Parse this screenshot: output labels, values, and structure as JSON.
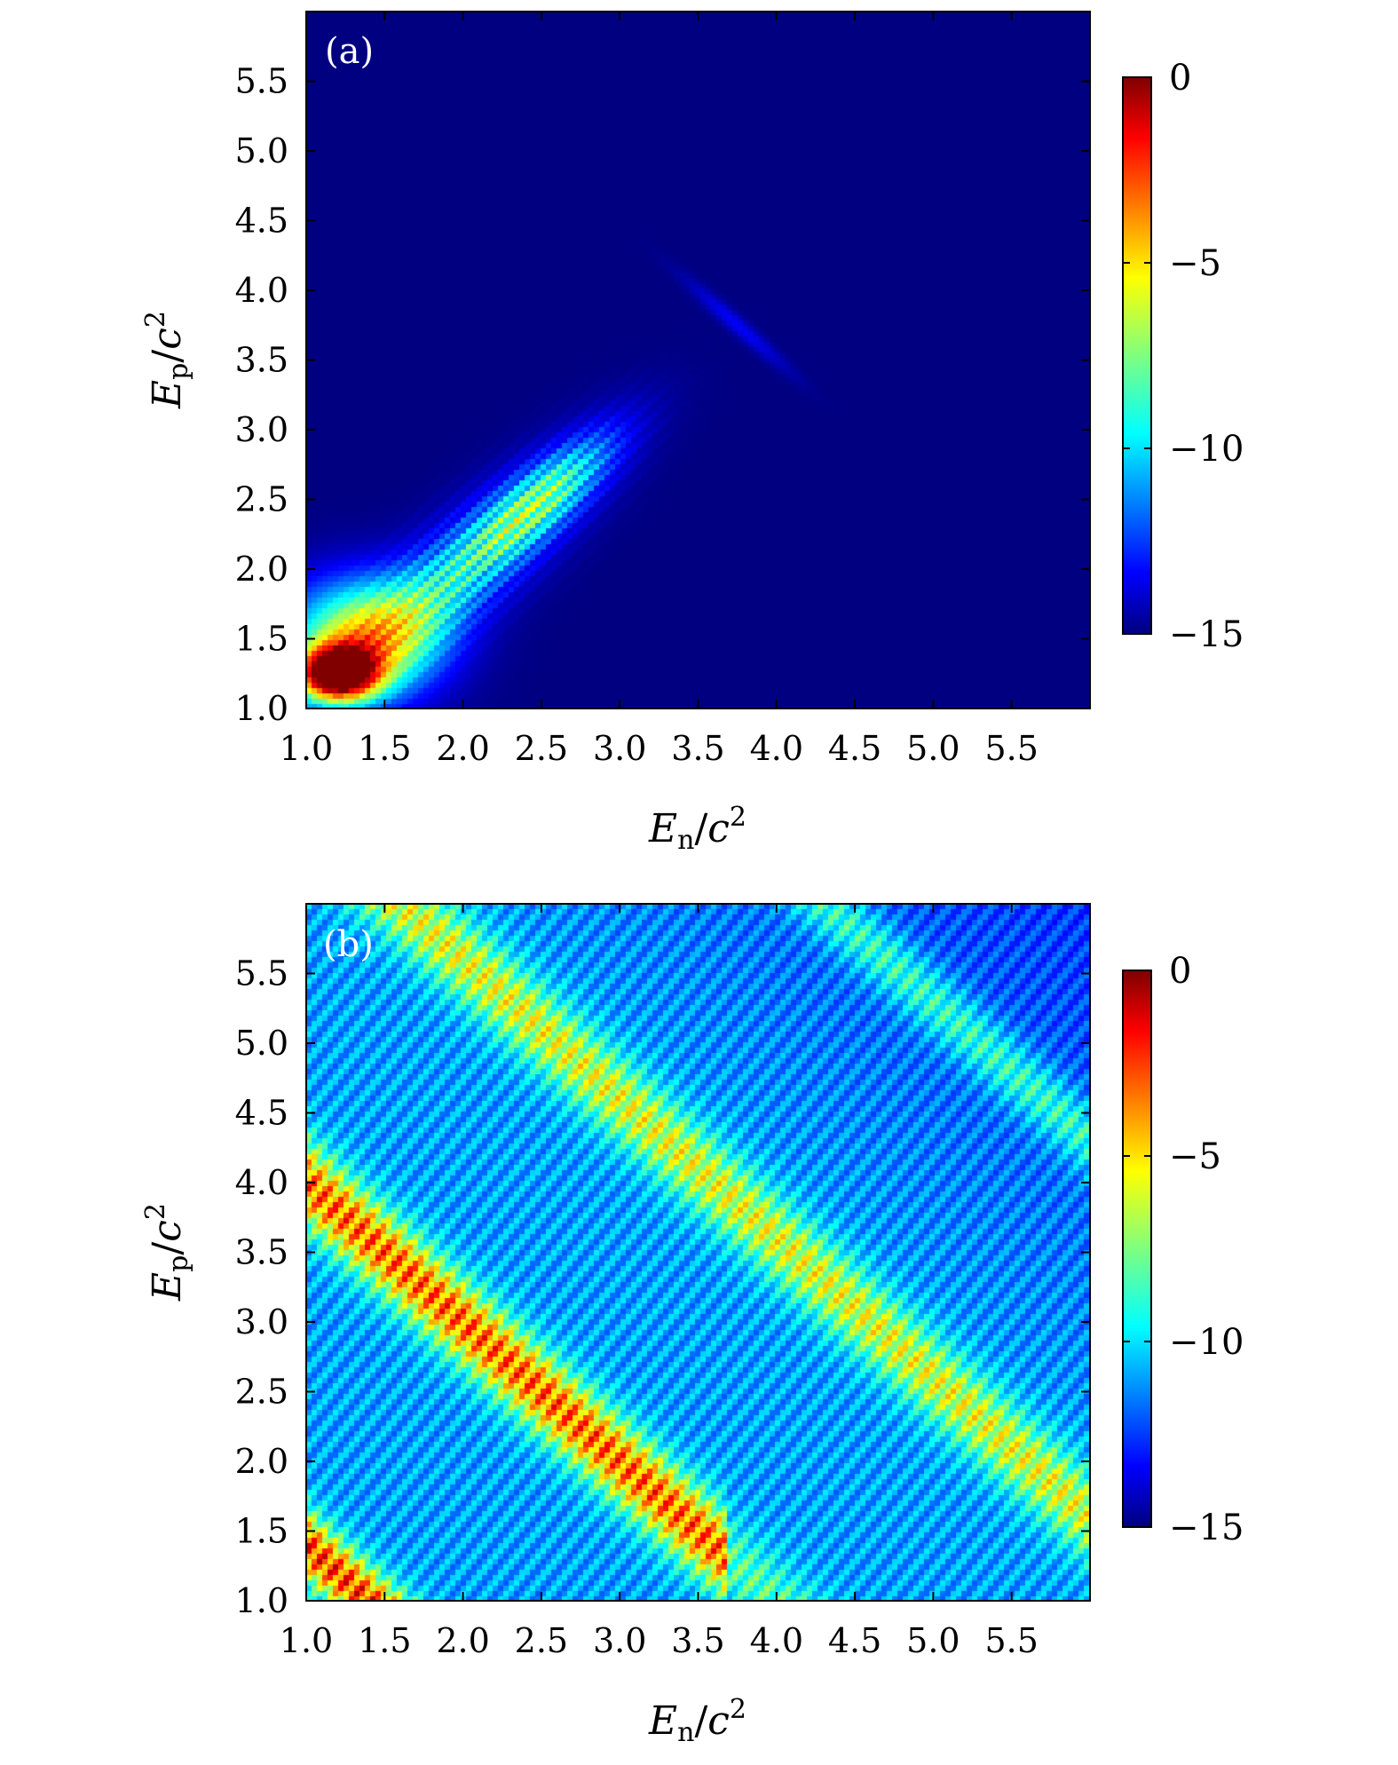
{
  "chart_data": [
    {
      "type": "heatmap",
      "panel_label": "(a)",
      "xlabel": {
        "main": "E",
        "sub": "n",
        "slash": "/",
        "c": "c",
        "sup": "2"
      },
      "ylabel": {
        "main": "E",
        "sub": "p",
        "slash": "/",
        "c": "c",
        "sup": "2"
      },
      "xlim": [
        1.0,
        6.0
      ],
      "ylim": [
        1.0,
        6.0
      ],
      "x_ticks": [
        "1.0",
        "1.5",
        "2.0",
        "2.5",
        "3.0",
        "3.5",
        "4.0",
        "4.5",
        "5.0",
        "5.5"
      ],
      "y_ticks": [
        "1.0",
        "1.5",
        "2.0",
        "2.5",
        "3.0",
        "3.5",
        "4.0",
        "4.5",
        "5.0",
        "5.5"
      ],
      "colorbar": {
        "min": -15,
        "max": 0,
        "ticks": [
          "0",
          "−5",
          "−10",
          "−15"
        ],
        "colormap": "jet"
      },
      "features": [
        {
          "x": 1.2,
          "y": 1.25,
          "value": -0.5
        },
        {
          "x": 2.5,
          "y": 2.5,
          "value": -7
        },
        {
          "x": 3.75,
          "y": 3.75,
          "value": -13
        }
      ],
      "background_value": -15
    },
    {
      "type": "heatmap",
      "panel_label": "(b)",
      "xlabel": {
        "main": "E",
        "sub": "n",
        "slash": "/",
        "c": "c",
        "sup": "2"
      },
      "ylabel": {
        "main": "E",
        "sub": "p",
        "slash": "/",
        "c": "c",
        "sup": "2"
      },
      "xlim": [
        1.0,
        6.0
      ],
      "ylim": [
        1.0,
        6.0
      ],
      "x_ticks": [
        "1.0",
        "1.5",
        "2.0",
        "2.5",
        "3.0",
        "3.5",
        "4.0",
        "4.5",
        "5.0",
        "5.5"
      ],
      "y_ticks": [
        "1.0",
        "1.5",
        "2.0",
        "2.5",
        "3.0",
        "3.5",
        "4.0",
        "4.5",
        "5.0",
        "5.5"
      ],
      "colorbar": {
        "min": -15,
        "max": 0,
        "ticks": [
          "0",
          "−5",
          "−10",
          "−15"
        ],
        "colormap": "jet"
      },
      "ridges": [
        {
          "En_plus_Ep": 2.4,
          "value": -1
        },
        {
          "En_plus_Ep": 5.0,
          "value": -1
        },
        {
          "En_plus_Ep": 7.5,
          "value": -6
        },
        {
          "En_plus_Ep": 10.0,
          "value": -9
        }
      ],
      "background_value": -11
    }
  ]
}
